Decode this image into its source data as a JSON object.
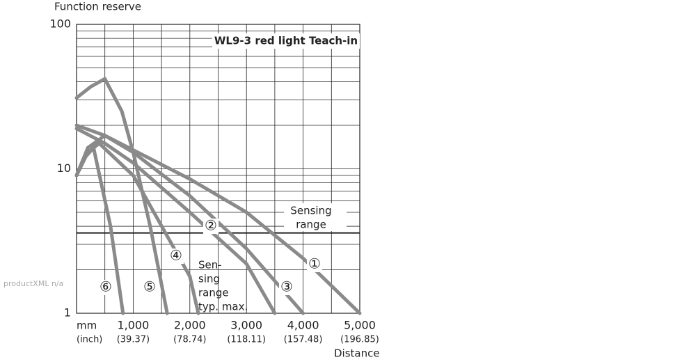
{
  "chart_data": {
    "type": "line",
    "title": "WL9-3 red light Teach-in",
    "y_label": "Function reserve",
    "x_label": "Distance",
    "x_unit": "mm",
    "x_subunit": "(inch)",
    "xlim": [
      0,
      5000
    ],
    "ylim": [
      1,
      100
    ],
    "y_log": true,
    "grid": true,
    "xticks": [
      {
        "value": 1000,
        "label": "1,000"
      },
      {
        "value": 2000,
        "label": "2,000"
      },
      {
        "value": 3000,
        "label": "3,000"
      },
      {
        "value": 4000,
        "label": "4,000"
      },
      {
        "value": 5000,
        "label": "5,000"
      }
    ],
    "xtick_sublabels": [
      "(39.37)",
      "(78.74)",
      "(118.11)",
      "(157.48)",
      "(196.85)"
    ],
    "yticks": [
      1,
      10,
      100
    ],
    "sensing_range_line": 3.6,
    "sensing_range_label": [
      "Sensing",
      "range"
    ],
    "typ_max_label": [
      "Sen-",
      "sing",
      "range",
      "typ. max."
    ],
    "side_note": "productXML n/a",
    "series": [
      {
        "name": "①",
        "color": "#8a8a8a",
        "x": [
          0,
          500,
          1000,
          2000,
          3000,
          4000,
          5000
        ],
        "values": [
          20,
          17,
          13.5,
          8.5,
          5,
          2.4,
          1
        ]
      },
      {
        "name": "②",
        "color": "#8a8a8a",
        "x": [
          0,
          500,
          1000,
          2000,
          3000,
          3500
        ],
        "values": [
          19,
          15,
          11,
          5,
          2.2,
          1
        ]
      },
      {
        "name": "③",
        "color": "#8a8a8a",
        "x": [
          0,
          200,
          500,
          1000,
          2000,
          3000,
          4000
        ],
        "values": [
          9,
          14,
          17,
          13,
          6.5,
          2.8,
          1
        ]
      },
      {
        "name": "④",
        "color": "#8a8a8a",
        "x": [
          0,
          200,
          400,
          1000,
          2000,
          2150
        ],
        "values": [
          9,
          13,
          15,
          9,
          1.8,
          1
        ]
      },
      {
        "name": "⑤",
        "color": "#8a8a8a",
        "x": [
          0,
          250,
          500,
          800,
          1000,
          1300,
          1600
        ],
        "values": [
          31,
          37,
          42,
          25,
          13,
          4,
          1
        ]
      },
      {
        "name": "⑥",
        "color": "#8a8a8a",
        "x": [
          0,
          150,
          300,
          600,
          820
        ],
        "values": [
          9,
          12,
          14,
          4,
          1
        ]
      }
    ]
  }
}
